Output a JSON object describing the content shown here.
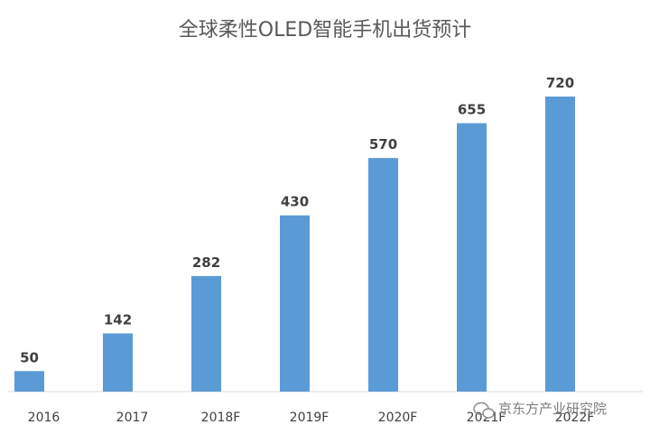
{
  "chart_data": {
    "type": "bar",
    "title": "全球柔性OLED智能手机出货预计",
    "categories": [
      "2016",
      "2017",
      "2018F",
      "2019F",
      "2020F",
      "2021F",
      "2022F"
    ],
    "values": [
      50,
      142,
      282,
      430,
      570,
      655,
      720
    ],
    "xlabel": "",
    "ylabel": "",
    "ylim": [
      0,
      720
    ],
    "grid": false,
    "legend": "none",
    "bar_color": "#5b9bd5"
  },
  "watermark": {
    "text": "京东方产业研究院",
    "icon": "wechat-icon"
  }
}
